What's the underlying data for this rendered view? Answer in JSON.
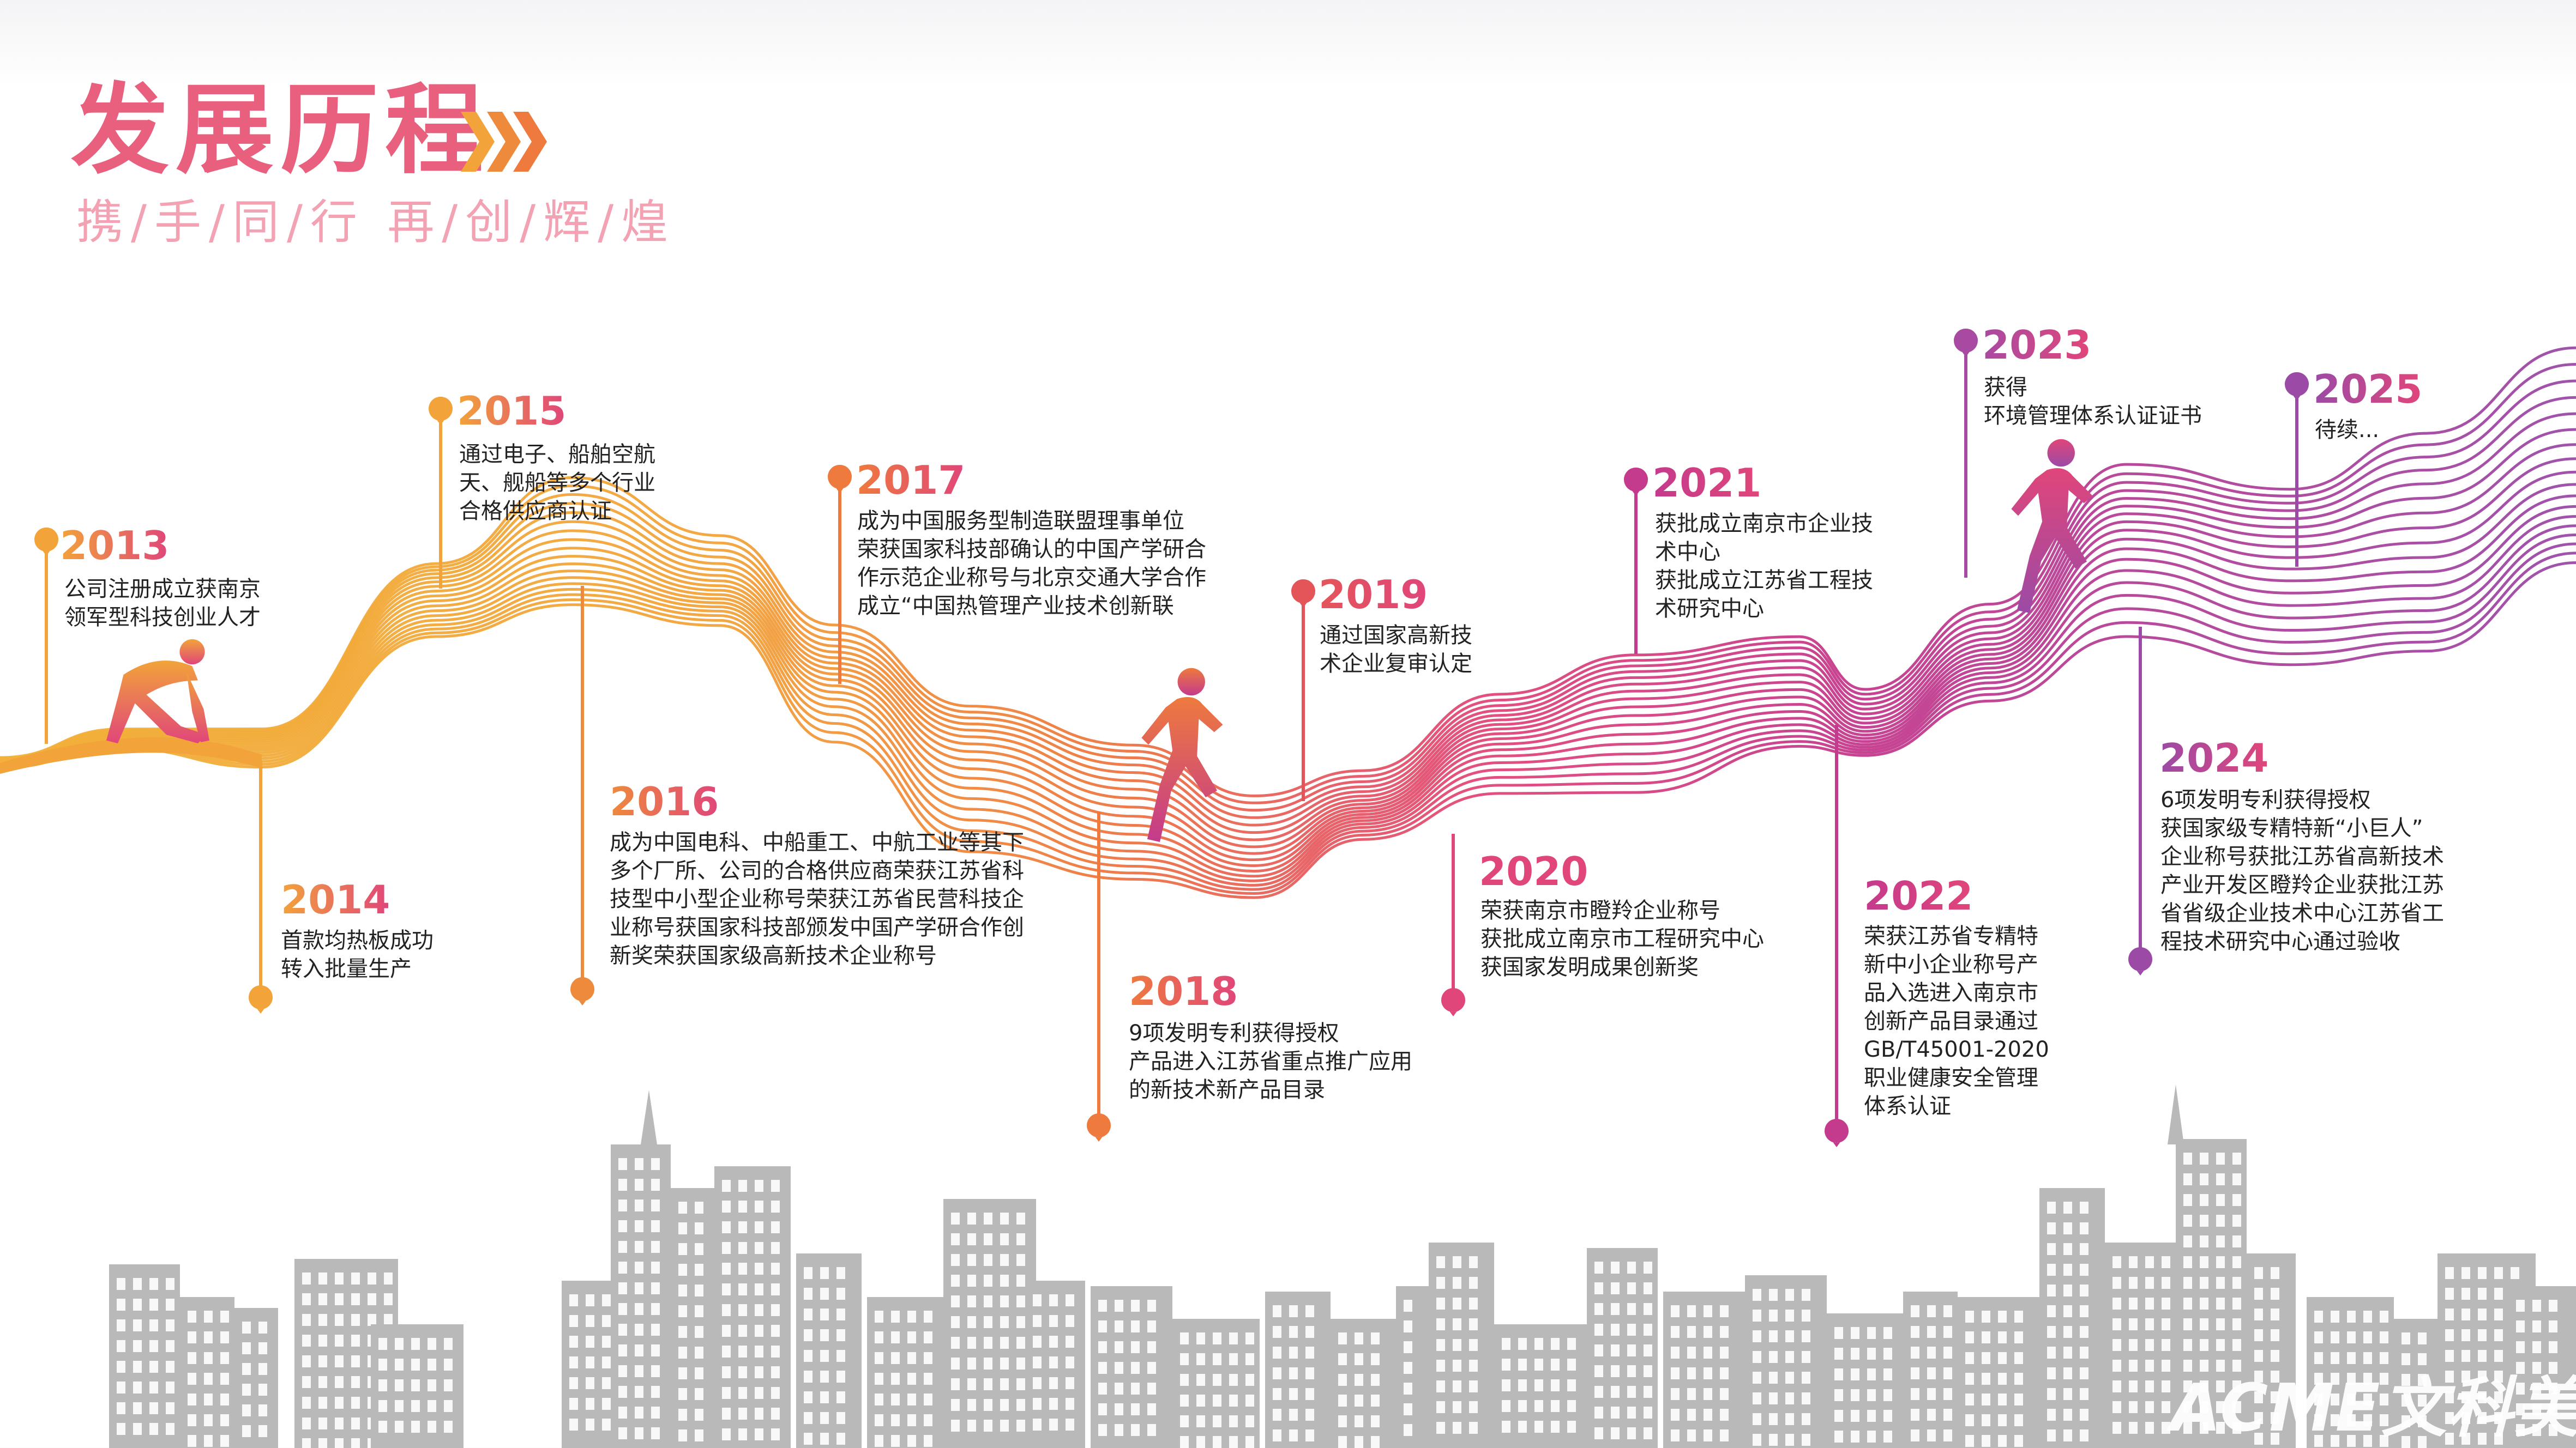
{
  "header": {
    "title": "发展历程",
    "subtitle": "携/手/同/行 再/创/辉/煌"
  },
  "colors": {
    "orange": "#f2a33a",
    "deep_orange": "#ee7a3e",
    "pink": "#e0467a",
    "magenta": "#c43a8c",
    "purple": "#9b4aa6",
    "skyline_gray": "#b9b9b9",
    "title_pink": "#e8607e"
  },
  "milestones": [
    {
      "year": "2013",
      "color": "#f2a33a",
      "lines": [
        "公司注册成立获南京",
        "领军型科技创业人才"
      ]
    },
    {
      "year": "2014",
      "color": "#f2a33a",
      "lines": [
        "首款均热板成功",
        "转入批量生产"
      ]
    },
    {
      "year": "2015",
      "color": "#f2a33a",
      "lines": [
        "通过电子、船舶空航",
        "天、舰船等多个行业",
        "合格供应商认证"
      ]
    },
    {
      "year": "2016",
      "color": "#ee8a3c",
      "lines": [
        "成为中国电科、中船重工、中航工业等其下",
        "多个厂所、公司的合格供应商荣获江苏省科",
        "技型中小型企业称号荣获江苏省民营科技企",
        "业称号获国家科技部颁发中国产学研合作创",
        "新奖荣获国家级高新技术企业称号"
      ]
    },
    {
      "year": "2017",
      "color": "#ee7a3e",
      "lines": [
        "成为中国服务型制造联盟理事单位",
        "荣获国家科技部确认的中国产学研合",
        "作示范企业称号与北京交通大学合作",
        "成立“中国热管理产业技术创新联"
      ]
    },
    {
      "year": "2018",
      "color": "#ee7a3e",
      "lines": [
        "9项发明专利获得授权",
        "产品进入江苏省重点推广应用",
        "的新技术新产品目录"
      ]
    },
    {
      "year": "2019",
      "color": "#e4555a",
      "lines": [
        "通过国家高新技",
        "术企业复审认定"
      ]
    },
    {
      "year": "2020",
      "color": "#e0467a",
      "lines": [
        "荣获南京市瞪羚企业称号",
        "获批成立南京市工程研究中心",
        "获国家发明成果创新奖"
      ]
    },
    {
      "year": "2021",
      "color": "#c43a8c",
      "lines": [
        "获批成立南京市企业技",
        "术中心",
        "获批成立江苏省工程技",
        "术研究中心"
      ]
    },
    {
      "year": "2022",
      "color": "#c43a8c",
      "lines": [
        "荣获江苏省专精特",
        "新中小企业称号产",
        "品入选进入南京市",
        "创新产品目录通过",
        "GB/T45001-2020",
        "职业健康安全管理",
        "体系认证"
      ]
    },
    {
      "year": "2023",
      "color": "#a94aa2",
      "lines": [
        "获得",
        "环境管理体系认证证书"
      ]
    },
    {
      "year": "2024",
      "color": "#9b4aa6",
      "lines": [
        "6项发明专利获得授权",
        "获国家级专精特新“小巨人”",
        "企业称号获批江苏省高新技术",
        "产业开发区瞪羚企业获批江苏",
        "省省级企业技术中心江苏省工",
        "程技术研究中心通过验收"
      ]
    },
    {
      "year": "2025",
      "color": "#9b4aa6",
      "lines": [
        "待续..."
      ]
    }
  ],
  "logo": {
    "text": "ACME文科美"
  }
}
